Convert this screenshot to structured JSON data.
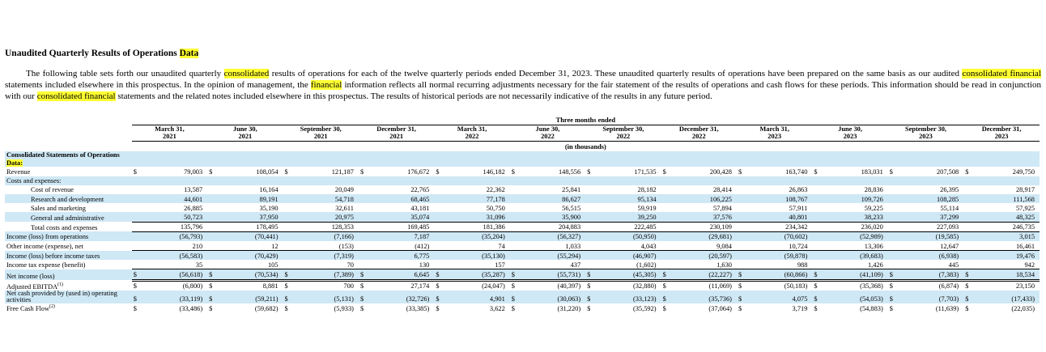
{
  "header": {
    "title": [
      {
        "text": "Unaudited Quarterly Results of Operations ",
        "highlight": false
      },
      {
        "text": "Data",
        "highlight": true
      }
    ]
  },
  "paragraph": [
    {
      "text": "The following table sets forth our unaudited quarterly ",
      "highlight": false
    },
    {
      "text": "consolidated",
      "highlight": true
    },
    {
      "text": " results of operations for each of the twelve quarterly periods ended December 31, 2023. These unaudited quarterly results of operations have been prepared on the same basis as our audited ",
      "highlight": false
    },
    {
      "text": "consolidated financial",
      "highlight": true
    },
    {
      "text": " statements included elsewhere in this prospectus. In the opinion of management, the ",
      "highlight": false
    },
    {
      "text": "financial",
      "highlight": true
    },
    {
      "text": " information reflects all normal recurring adjustments necessary for the fair statement of the results of operations and cash flows for these periods. This information should be read in conjunction with our ",
      "highlight": false
    },
    {
      "text": "consolidated financial",
      "highlight": true
    },
    {
      "text": " statements and the related notes included elsewhere in this prospectus. The results of historical periods are not necessarily indicative of the results in any future period.",
      "highlight": false
    }
  ],
  "table": {
    "group_header": "Three months ended",
    "units": "(in thousands)",
    "columns": [
      [
        "March 31,",
        "2021"
      ],
      [
        "June 30,",
        "2021"
      ],
      [
        "September 30,",
        "2021"
      ],
      [
        "December 31,",
        "2021"
      ],
      [
        "March 31,",
        "2022"
      ],
      [
        "June 30,",
        "2022"
      ],
      [
        "September 30,",
        "2022"
      ],
      [
        "December 31,",
        "2022"
      ],
      [
        "March 31,",
        "2023"
      ],
      [
        "June 30,",
        "2023"
      ],
      [
        "September 30,",
        "2023"
      ],
      [
        "December 31,",
        "2023"
      ]
    ],
    "rows": [
      {
        "label": [
          {
            "text": "Consolidated Statements of Operations ",
            "highlight": false
          },
          {
            "text": "Data:",
            "highlight": true
          }
        ],
        "bold": true
      },
      {
        "label": "Revenue",
        "currency": "$",
        "values": [
          "79,003",
          "108,054",
          "121,187",
          "176,672",
          "146,182",
          "148,556",
          "171,535",
          "200,428",
          "163,740",
          "183,031",
          "207,508",
          "249,750"
        ]
      },
      {
        "label": "Costs and expenses:"
      },
      {
        "label": "Cost of revenue",
        "indent": 2,
        "values": [
          "13,587",
          "16,164",
          "20,049",
          "22,765",
          "22,362",
          "25,841",
          "28,182",
          "28,414",
          "26,863",
          "28,836",
          "26,395",
          "28,917"
        ]
      },
      {
        "label": "Research and development",
        "indent": 2,
        "values": [
          "44,601",
          "89,191",
          "54,718",
          "68,465",
          "77,178",
          "86,627",
          "95,134",
          "106,225",
          "108,767",
          "109,726",
          "108,285",
          "111,568"
        ]
      },
      {
        "label": "Sales and marketing",
        "indent": 2,
        "values": [
          "26,885",
          "35,190",
          "32,611",
          "43,181",
          "50,750",
          "56,515",
          "59,919",
          "57,894",
          "57,911",
          "59,225",
          "55,114",
          "57,925"
        ]
      },
      {
        "label": "General and administrative",
        "indent": 2,
        "underline": "single",
        "values": [
          "50,723",
          "37,950",
          "20,975",
          "35,074",
          "31,096",
          "35,900",
          "39,250",
          "37,576",
          "40,801",
          "38,233",
          "37,299",
          "48,325"
        ]
      },
      {
        "label": "Total costs and expenses",
        "indent": 2,
        "underline": "single",
        "values": [
          "135,796",
          "178,495",
          "128,353",
          "169,485",
          "181,386",
          "204,883",
          "222,485",
          "230,109",
          "234,342",
          "236,020",
          "227,093",
          "246,735"
        ]
      },
      {
        "label": "Income (loss) from operations",
        "values": [
          "(56,793)",
          "(70,441)",
          "(7,166)",
          "7,187",
          "(35,204)",
          "(56,327)",
          "(50,950)",
          "(29,681)",
          "(70,602)",
          "(52,989)",
          "(19,585)",
          "3,015"
        ]
      },
      {
        "label": "Other income (expense), net",
        "underline": "single",
        "values": [
          "210",
          "12",
          "(153)",
          "(412)",
          "74",
          "1,033",
          "4,043",
          "9,084",
          "10,724",
          "13,306",
          "12,647",
          "16,461"
        ]
      },
      {
        "label": "Income (loss) before income taxes",
        "values": [
          "(56,583)",
          "(70,429)",
          "(7,319)",
          "6,775",
          "(35,130)",
          "(55,294)",
          "(46,907)",
          "(20,597)",
          "(59,878)",
          "(39,683)",
          "(6,938)",
          "19,476"
        ]
      },
      {
        "label": "Income tax expense (benefit)",
        "underline": "single",
        "values": [
          "35",
          "105",
          "70",
          "130",
          "157",
          "437",
          "(1,602)",
          "1,630",
          "988",
          "1,426",
          "445",
          "942"
        ]
      },
      {
        "label": "Net income (loss)",
        "currency": "$",
        "underline": "double",
        "values": [
          "(56,618)",
          "(70,534)",
          "(7,389)",
          "6,645",
          "(35,287)",
          "(55,731)",
          "(45,305)",
          "(22,227)",
          "(60,866)",
          "(41,109)",
          "(7,383)",
          "18,534"
        ]
      },
      {
        "label": "Adjusted EBITDA",
        "note": "(1)",
        "currency": "$",
        "values": [
          "(6,800)",
          "8,881",
          "700",
          "27,174",
          "(24,047)",
          "(40,397)",
          "(32,880)",
          "(11,069)",
          "(50,183)",
          "(35,368)",
          "(6,874)",
          "23,150"
        ]
      },
      {
        "label": "Net cash provided by (used in) operating activities",
        "currency": "$",
        "values": [
          "(33,119)",
          "(59,211)",
          "(5,131)",
          "(32,726)",
          "4,901",
          "(30,063)",
          "(33,123)",
          "(35,736)",
          "4,075",
          "(54,053)",
          "(7,703)",
          "(17,433)"
        ]
      },
      {
        "label": "Free Cash Flow",
        "note": "(2)",
        "currency": "$",
        "values": [
          "(33,486)",
          "(59,682)",
          "(5,933)",
          "(33,385)",
          "3,622",
          "(31,220)",
          "(35,592)",
          "(37,064)",
          "3,719",
          "(54,883)",
          "(11,639)",
          "(22,035)"
        ]
      }
    ]
  }
}
